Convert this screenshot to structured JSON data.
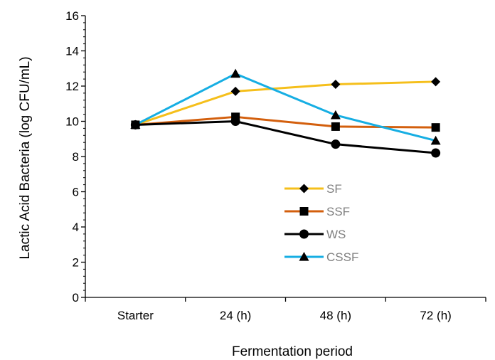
{
  "chart_data": {
    "type": "line",
    "title": "",
    "xlabel": "Fermentation period",
    "ylabel": "Lactic Acid Bacteria (log CFU/mL)",
    "categories": [
      "Starter",
      "24 (h)",
      "48 (h)",
      "72 (h)"
    ],
    "ylim": [
      0,
      16
    ],
    "yticks": [
      0,
      2,
      4,
      6,
      8,
      10,
      12,
      14,
      16
    ],
    "grid": false,
    "legend_position": "center",
    "series": [
      {
        "name": "SF",
        "values": [
          9.8,
          11.7,
          12.1,
          12.25
        ],
        "color": "#f5bf1b",
        "marker": "diamond"
      },
      {
        "name": "SSF",
        "values": [
          9.8,
          10.25,
          9.7,
          9.65
        ],
        "color": "#d35f0d",
        "marker": "square"
      },
      {
        "name": "WS",
        "values": [
          9.8,
          10.0,
          8.7,
          8.2
        ],
        "color": "#000000",
        "marker": "circle"
      },
      {
        "name": "CSSF",
        "values": [
          9.8,
          12.7,
          10.35,
          8.9
        ],
        "color": "#16aee3",
        "marker": "triangle"
      }
    ]
  }
}
